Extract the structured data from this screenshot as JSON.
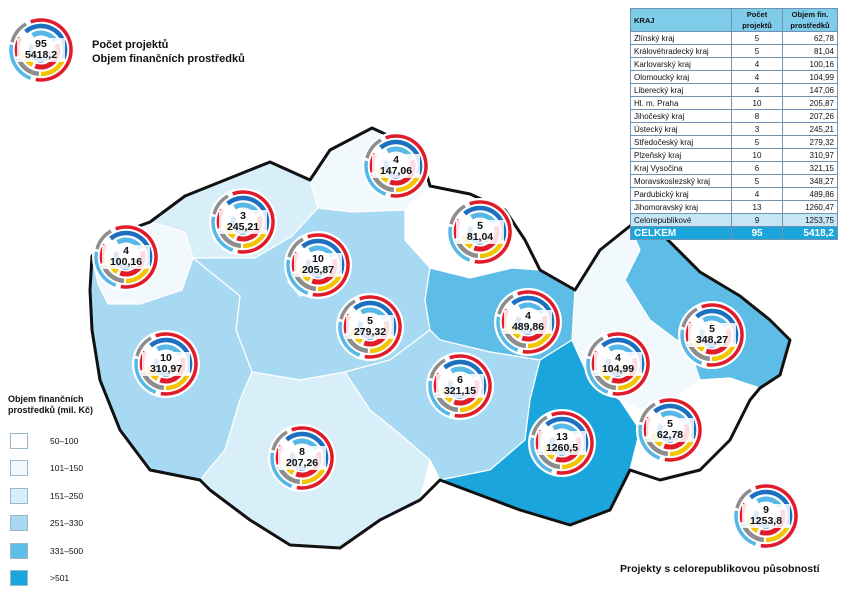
{
  "legend_top": {
    "count_label": "Počet projektů",
    "value_label": "Objem finančních prostředků",
    "count": "95",
    "value": "5418,2"
  },
  "legend": {
    "title": "Objem finančních prostředků (mil. Kč)",
    "items": [
      {
        "label": "50–100",
        "color": "#ffffff"
      },
      {
        "label": "101–150",
        "color": "#f2f9fd"
      },
      {
        "label": "151–250",
        "color": "#d8eef9"
      },
      {
        "label": "251–330",
        "color": "#a8d9f2"
      },
      {
        "label": "331–500",
        "color": "#5dbde6"
      },
      {
        "label": ">501",
        "color": "#1aa6dd"
      }
    ]
  },
  "table": {
    "headers": [
      "KRAJ",
      "Počet projektů",
      "Objem fin. prostředků"
    ],
    "rows": [
      [
        "Zlínský kraj",
        "5",
        "62,78"
      ],
      [
        "Královéhradecký kraj",
        "5",
        "81,04"
      ],
      [
        "Karlovarský kraj",
        "4",
        "100,16"
      ],
      [
        "Olomoucký kraj",
        "4",
        "104,99"
      ],
      [
        "Liberecký kraj",
        "4",
        "147,06"
      ],
      [
        "Hl. m. Praha",
        "10",
        "205,87"
      ],
      [
        "Jihočeský kraj",
        "8",
        "207,26"
      ],
      [
        "Ústecký kraj",
        "3",
        "245,21"
      ],
      [
        "Středočeský kraj",
        "5",
        "279,32"
      ],
      [
        "Plzeňský kraj",
        "10",
        "310,97"
      ],
      [
        "Kraj Vysočina",
        "6",
        "321,15"
      ],
      [
        "Moravskoslezský kraj",
        "5",
        "348,27"
      ],
      [
        "Pardubický kraj",
        "4",
        "489,86"
      ],
      [
        "Jihomoravský kraj",
        "13",
        "1260,47"
      ]
    ],
    "cr_row": [
      "Celorepublikové",
      "9",
      "1253,75"
    ],
    "total_row": [
      "CELKEM",
      "95",
      "5418,2"
    ]
  },
  "markers": [
    {
      "count": "4",
      "value": "147,06"
    },
    {
      "count": "3",
      "value": "245,21"
    },
    {
      "count": "5",
      "value": "81,04"
    },
    {
      "count": "4",
      "value": "100,16"
    },
    {
      "count": "10",
      "value": "205,87"
    },
    {
      "count": "5",
      "value": "279,32"
    },
    {
      "count": "4",
      "value": "489,86"
    },
    {
      "count": "5",
      "value": "348,27"
    },
    {
      "count": "10",
      "value": "310,97"
    },
    {
      "count": "4",
      "value": "104,99"
    },
    {
      "count": "6",
      "value": "321,15"
    },
    {
      "count": "5",
      "value": "62,78"
    },
    {
      "count": "13",
      "value": "1260,5"
    },
    {
      "count": "8",
      "value": "207,26"
    },
    {
      "count": "9",
      "value": "1253,8"
    }
  ],
  "footer_note": "Projekty s celorepublikovou působností",
  "ring_colors": [
    "#1d6fc0",
    "#e01b2a",
    "#f4c400",
    "#8d8d8d",
    "#57b7e6"
  ]
}
